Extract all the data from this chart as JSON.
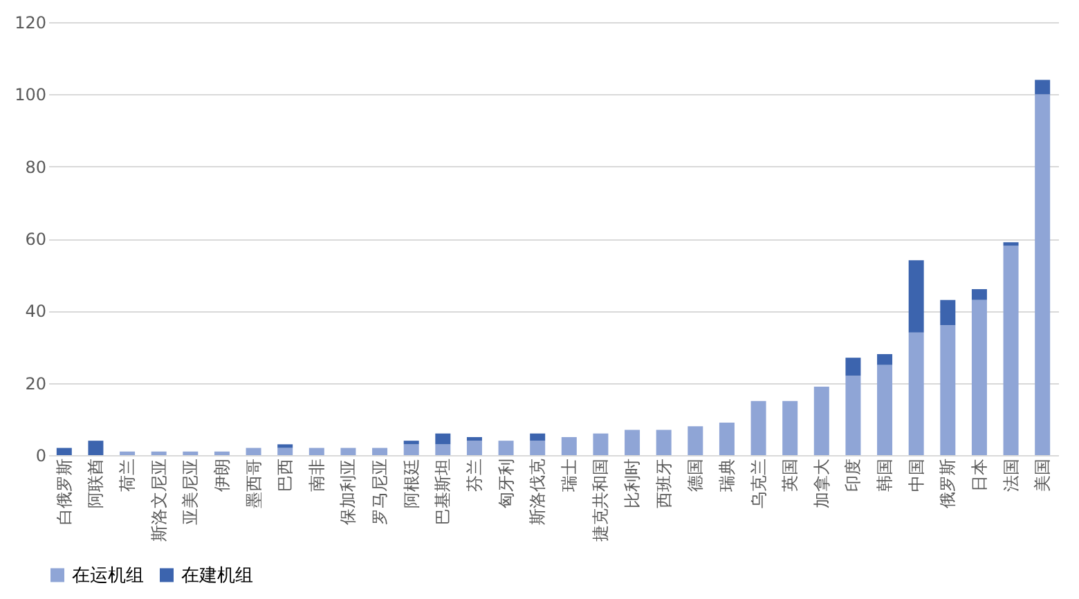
{
  "chart_data": {
    "type": "bar",
    "stacked": true,
    "categories": [
      "白俄罗斯",
      "阿联酋",
      "荷兰",
      "斯洛文尼亚",
      "亚美尼亚",
      "伊朗",
      "墨西哥",
      "巴西",
      "南非",
      "保加利亚",
      "罗马尼亚",
      "阿根廷",
      "巴基斯坦",
      "芬兰",
      "匈牙利",
      "斯洛伐克",
      "瑞士",
      "捷克共和国",
      "比利时",
      "西班牙",
      "德国",
      "瑞典",
      "乌克兰",
      "英国",
      "加拿大",
      "印度",
      "韩国",
      "中国",
      "俄罗斯",
      "日本",
      "法国",
      "美国"
    ],
    "series": [
      {
        "name": "在运机组",
        "color": "#8fa5d6",
        "values": [
          0,
          0,
          1,
          1,
          1,
          1,
          2,
          2,
          2,
          2,
          2,
          3,
          3,
          4,
          4,
          4,
          5,
          6,
          7,
          7,
          8,
          9,
          15,
          15,
          19,
          22,
          25,
          34,
          36,
          43,
          58,
          100
        ]
      },
      {
        "name": "在建机组",
        "color": "#3c64ae",
        "values": [
          2,
          4,
          0,
          0,
          0,
          0,
          0,
          1,
          0,
          0,
          0,
          1,
          3,
          1,
          0,
          2,
          0,
          0,
          0,
          0,
          0,
          0,
          0,
          0,
          0,
          5,
          3,
          20,
          7,
          3,
          1,
          4
        ]
      }
    ],
    "ylim": [
      0,
      120
    ],
    "yticks": [
      0,
      20,
      40,
      60,
      80,
      100,
      120
    ],
    "grid": "y",
    "legend": "bottom"
  }
}
